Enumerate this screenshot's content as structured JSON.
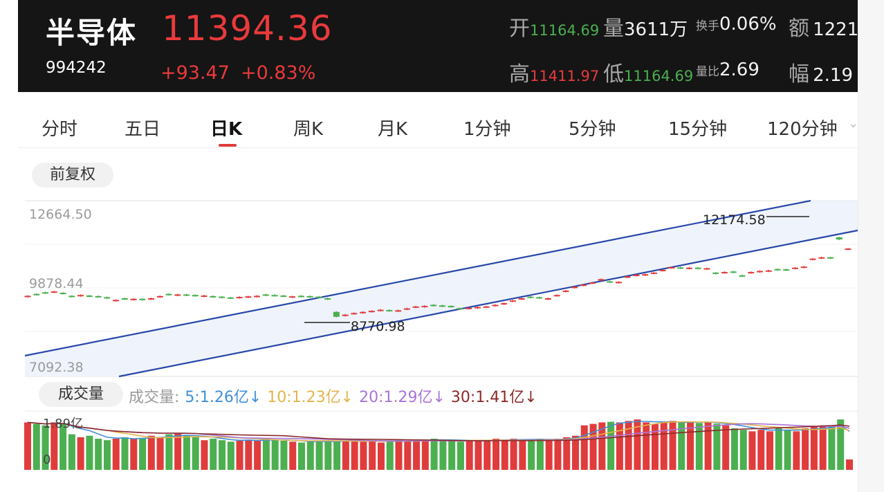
{
  "header": {
    "name": "半导体",
    "code": "994242",
    "price": "11394.36",
    "change": "+93.47",
    "change_pct": "+0.83%",
    "stats": {
      "open_label": "开",
      "open": "11164.69",
      "volume_label": "量",
      "volume": "3611万",
      "turnover_label": "换手",
      "turnover": "0.06%",
      "amount_label": "额",
      "amount": "1221",
      "high_label": "高",
      "high": "11411.97",
      "low_label": "低",
      "low": "11164.69",
      "vol_ratio_label": "量比",
      "vol_ratio": "2.69",
      "amplitude_label": "幅",
      "amplitude": "2.19"
    }
  },
  "tabs": [
    "分时",
    "五日",
    "日K",
    "周K",
    "月K",
    "1分钟",
    "5分钟",
    "15分钟",
    "120分钟"
  ],
  "active_tab": "日K",
  "adjust_label": "前复权",
  "volume_label": "成交量",
  "volume_legend": {
    "title": "成交量:",
    "ma5": "5:1.26亿↓",
    "ma10": "10:1.23亿↓",
    "ma20": "20:1.29亿↓",
    "ma30": "30:1.41亿↓"
  },
  "colors": {
    "up": "#e03c3c",
    "down": "#4caf50",
    "channel": "#2747a8",
    "channel_fill": "#edf2fb",
    "ma5": "#3f8fd8",
    "ma10": "#e2b54b",
    "ma20": "#a974d6",
    "ma30": "#8a2a2a"
  },
  "chart_data": {
    "type": "candlestick",
    "y_axis_labels": [
      "12664.50",
      "9878.44",
      "7092.38"
    ],
    "ylim": [
      7092.38,
      12664.5
    ],
    "annotations": {
      "high": "12174.58",
      "low": "8770.98"
    },
    "closes": [
      9690,
      9720,
      9780,
      9850,
      9760,
      9650,
      9720,
      9660,
      9640,
      9600,
      9540,
      9560,
      9580,
      9540,
      9600,
      9680,
      9720,
      9740,
      9700,
      9680,
      9700,
      9640,
      9620,
      9590,
      9650,
      9670,
      9690,
      9700,
      9680,
      9660,
      9670,
      9650,
      9640,
      9620,
      9560,
      8920,
      9000,
      9060,
      9100,
      9140,
      9180,
      9130,
      9160,
      9230,
      9300,
      9320,
      9320,
      9300,
      9280,
      9200,
      9250,
      9280,
      9300,
      9360,
      9420,
      9520,
      9600,
      9620,
      9600,
      9600,
      9720,
      9880,
      10020,
      10100,
      10180,
      10300,
      10180,
      10200,
      10400,
      10460,
      10480,
      10540,
      10640,
      10740,
      10690,
      10720,
      10680,
      10700,
      10500,
      10560,
      10540,
      10400,
      10560,
      10600,
      10620,
      10630,
      10620,
      10720,
      10760,
      11050,
      11100,
      11060,
      11830,
      11400
    ],
    "volume_axis": {
      "max": "1.89亿",
      "min": "0"
    },
    "volume_up": [
      1.6,
      1.55,
      1.5,
      1.6,
      1.55,
      1.2,
      1.1,
      1.15,
      1.05,
      1.0,
      1.05,
      1.1,
      1.05,
      1.08,
      1.15,
      1.1,
      1.2,
      1.22,
      1.15,
      1.1,
      1.0,
      1.05,
      1.0,
      0.95,
      0.98,
      1.02,
      1.0,
      1.05,
      1.0,
      0.98,
      0.95,
      0.92,
      0.95,
      0.98,
      1.0,
      0.95,
      0.98,
      1.0,
      0.95,
      1.0,
      0.92,
      0.95,
      1.0,
      0.98,
      1.0,
      1.02,
      1.05,
      1.0,
      0.98,
      0.95,
      1.0,
      0.98,
      1.0,
      1.05,
      1.0,
      1.05,
      1.0,
      1.02,
      1.05,
      1.0,
      1.05,
      1.1,
      1.15,
      1.5,
      1.55,
      1.6,
      1.62,
      1.6,
      1.65,
      1.7,
      1.6,
      1.55,
      1.6,
      1.65,
      1.62,
      1.6,
      1.58,
      1.6,
      1.55,
      1.5,
      1.4,
      1.35,
      1.3,
      1.35,
      1.3,
      1.4,
      1.35,
      1.3,
      1.4,
      1.45,
      1.5,
      1.48,
      1.7,
      0.35
    ],
    "down_flags": [
      0,
      1,
      1,
      0,
      1,
      1,
      0,
      1,
      1,
      1,
      0,
      1,
      0,
      1,
      0,
      0,
      1,
      0,
      1,
      1,
      0,
      1,
      1,
      1,
      0,
      0,
      0,
      1,
      1,
      1,
      0,
      1,
      1,
      1,
      1,
      1,
      0,
      0,
      0,
      0,
      0,
      1,
      0,
      0,
      0,
      0,
      1,
      1,
      1,
      1,
      0,
      0,
      0,
      0,
      0,
      0,
      0,
      1,
      1,
      0,
      0,
      0,
      0,
      0,
      0,
      0,
      1,
      0,
      0,
      0,
      0,
      0,
      0,
      0,
      1,
      0,
      1,
      0,
      1,
      0,
      1,
      1,
      0,
      0,
      0,
      1,
      1,
      0,
      0,
      0,
      0,
      1,
      1,
      0
    ]
  }
}
